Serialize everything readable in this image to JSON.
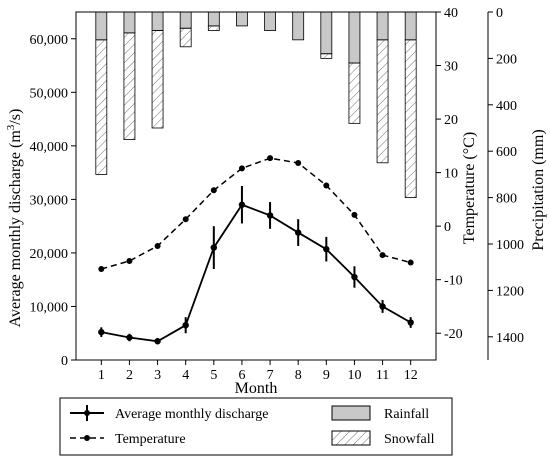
{
  "chart_data": {
    "type": "bar+line",
    "categories": [
      "1",
      "2",
      "3",
      "4",
      "5",
      "6",
      "7",
      "8",
      "9",
      "10",
      "11",
      "12"
    ],
    "xlabel": "Month",
    "left_axis": {
      "label_main": "Average monthly discharge (m",
      "label_sup": "3",
      "label_end": "/s)",
      "ylim": [
        0,
        65000
      ],
      "ticks": [
        0,
        10000,
        20000,
        30000,
        40000,
        50000,
        60000
      ],
      "tick_labels": [
        "0",
        "10,000",
        "20,000",
        "30,000",
        "40,000",
        "50,000",
        "60,000"
      ]
    },
    "temperature_axis": {
      "label": "Temperature (°C)",
      "ylim": [
        -25,
        40
      ],
      "ticks": [
        -20,
        -10,
        0,
        10,
        20,
        30,
        40
      ],
      "tick_labels": [
        "-20",
        "-10",
        "0",
        "10",
        "20",
        "30",
        "40"
      ]
    },
    "precipitation_axis": {
      "label": "Precipitation (mm)",
      "ylim": [
        0,
        1500
      ],
      "inverted": true,
      "ticks": [
        0,
        200,
        400,
        600,
        800,
        1000,
        1200,
        1400
      ],
      "tick_labels": [
        "0",
        "200",
        "400",
        "600",
        "800",
        "1000",
        "1200",
        "1400"
      ]
    },
    "series": [
      {
        "name": "Average monthly discharge",
        "axis": "left",
        "style": "solid line with error bars",
        "values": [
          5200,
          4200,
          3500,
          6500,
          21000,
          29000,
          27000,
          23800,
          20700,
          15500,
          10000,
          7000
        ],
        "error": [
          900,
          700,
          500,
          1500,
          4000,
          3500,
          2500,
          2500,
          2300,
          2000,
          1200,
          1000
        ]
      },
      {
        "name": "Temperature",
        "axis": "temperature",
        "style": "dashed line with dots",
        "values": [
          -8,
          -6.5,
          -3.7,
          1.3,
          6.7,
          10.8,
          12.7,
          11.8,
          7.6,
          2.1,
          -5.4,
          -6.8
        ]
      },
      {
        "name": "Rainfall",
        "axis": "precipitation",
        "style": "grey bar from top",
        "values": [
          120,
          90,
          80,
          70,
          60,
          60,
          80,
          120,
          180,
          220,
          120,
          120
        ]
      },
      {
        "name": "Snowfall",
        "axis": "precipitation",
        "style": "hatched bar stacked below rainfall",
        "values": [
          580,
          460,
          420,
          80,
          20,
          0,
          0,
          0,
          20,
          260,
          530,
          680
        ]
      }
    ],
    "legend": {
      "placement": "bottom",
      "entries": [
        "Average monthly discharge",
        "Temperature",
        "Rainfall",
        "Snowfall"
      ]
    },
    "colors": {
      "rainfall": "#c8c8c8",
      "snowfall_hatch": "#777777",
      "line": "#000000"
    }
  }
}
